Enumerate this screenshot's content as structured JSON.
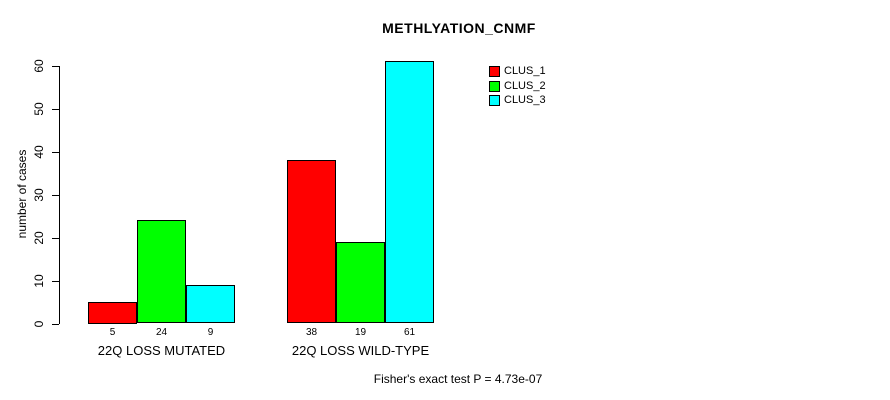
{
  "chart_data": {
    "type": "bar",
    "title": "METHLYATION_CNMF",
    "ylabel": "number of cases",
    "xlabel": "",
    "categories": [
      "22Q LOSS MUTATED",
      "22Q LOSS WILD-TYPE"
    ],
    "series": [
      {
        "name": "CLUS_1",
        "color": "#ff0000",
        "values": [
          5,
          38
        ]
      },
      {
        "name": "CLUS_2",
        "color": "#00ff00",
        "values": [
          24,
          19
        ]
      },
      {
        "name": "CLUS_3",
        "color": "#00ffff",
        "values": [
          9,
          61
        ]
      }
    ],
    "bar_value_labels": [
      [
        "5",
        "24",
        "9"
      ],
      [
        "38",
        "19",
        "61"
      ]
    ],
    "yticks": [
      "0",
      "10",
      "20",
      "30",
      "40",
      "50",
      "60"
    ],
    "ylim": [
      0,
      60
    ],
    "grid": false,
    "legend_position": "top-right",
    "legend_entries": [
      "CLUS_1",
      "CLUS_2",
      "CLUS_3"
    ],
    "bar_border_color": "#000000",
    "axis_color": "#000000",
    "annotation": "Fisher's exact test P = 4.73e-07"
  }
}
